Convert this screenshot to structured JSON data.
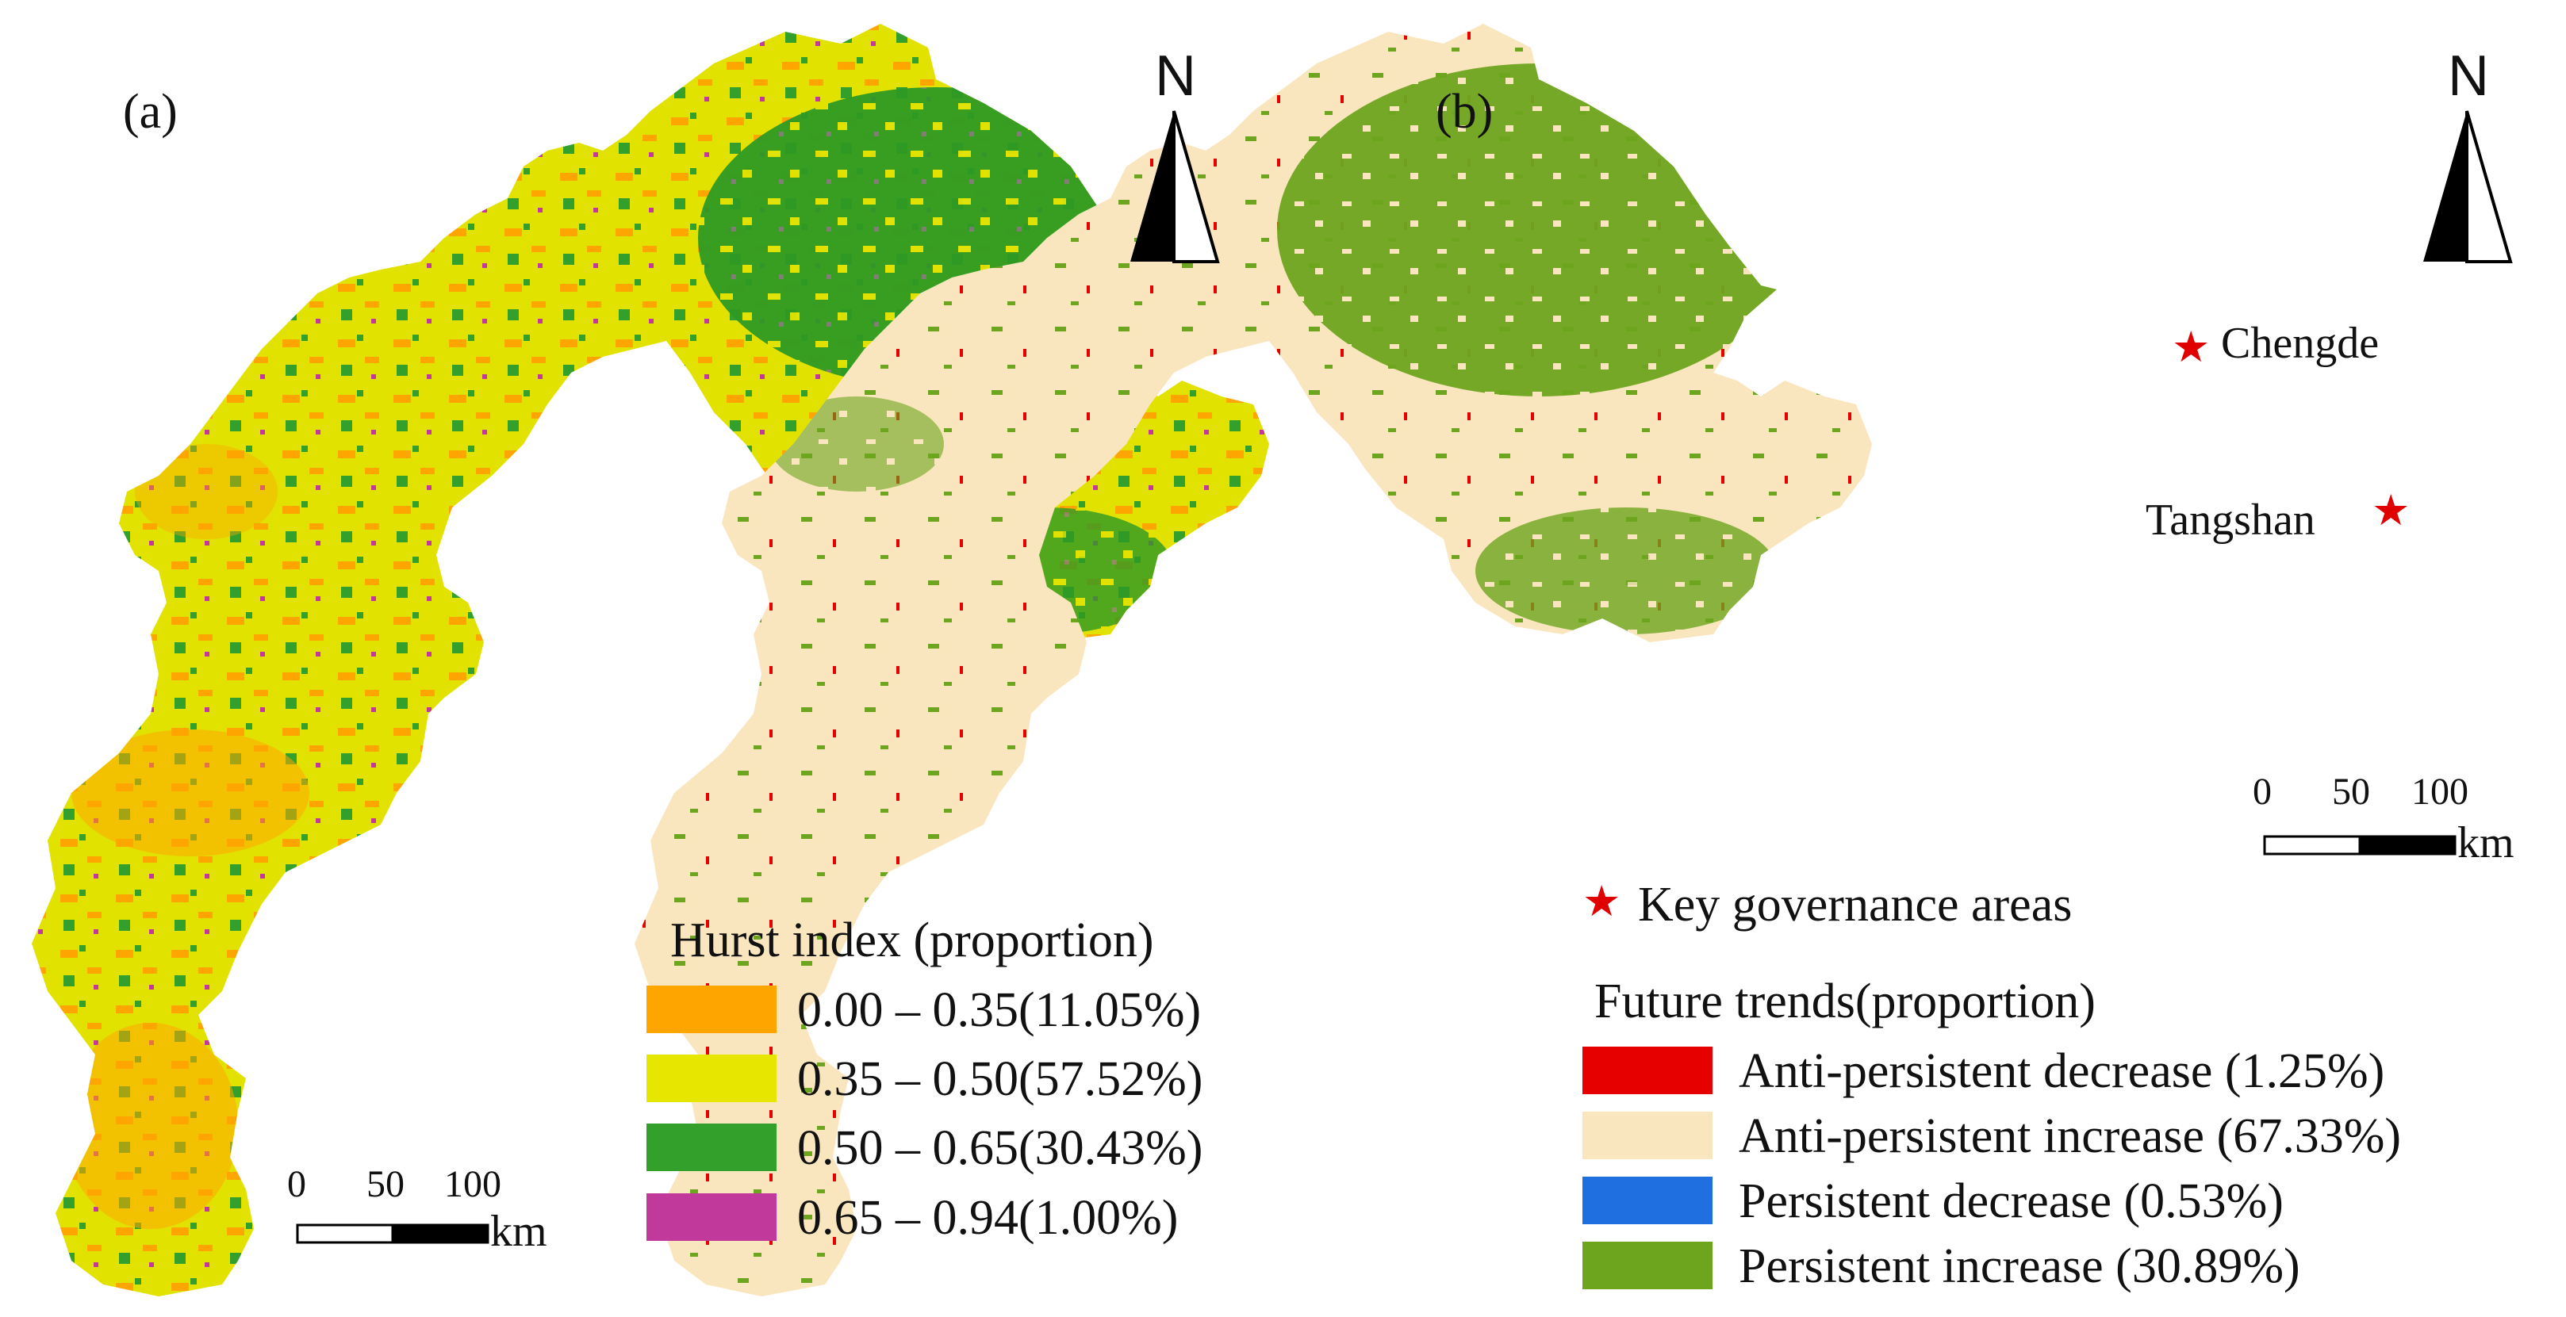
{
  "panel_a": {
    "label": "(a)",
    "legend": {
      "title": "Hurst index (proportion)",
      "items": [
        {
          "label": "0.00 – 0.35(11.05%)",
          "color": "#ffa500",
          "proportion": 11.05
        },
        {
          "label": "0.35 – 0.50(57.52%)",
          "color": "#e6e600",
          "proportion": 57.52
        },
        {
          "label": "0.50 – 0.65(30.43%)",
          "color": "#33a02c",
          "proportion": 30.43
        },
        {
          "label": "0.65 – 0.94(1.00%)",
          "color": "#c0399b",
          "proportion": 1.0
        }
      ]
    },
    "scale_bar": {
      "ticks": [
        "0",
        "50",
        "100"
      ],
      "unit": "km"
    },
    "north_arrow": {
      "letter": "N",
      "icon": "north-arrow-icon"
    }
  },
  "panel_b": {
    "label": "(b)",
    "marker_legend": {
      "symbol": "★",
      "label": "Key governance areas",
      "color": "#e00000"
    },
    "legend": {
      "title": "Future trends(proportion)",
      "items": [
        {
          "label": "Anti-persistent decrease (1.25%)",
          "color": "#e60000",
          "proportion": 1.25
        },
        {
          "label": "Anti-persistent increase (67.33%)",
          "color": "#fae6be",
          "proportion": 67.33
        },
        {
          "label": "Persistent decrease (0.53%)",
          "color": "#1f6fe0",
          "proportion": 0.53
        },
        {
          "label": "Persistent increase (30.89%)",
          "color": "#6ea51e",
          "proportion": 30.89
        }
      ]
    },
    "cities": [
      {
        "name": "Chengde",
        "marker": "★"
      },
      {
        "name": "Tangshan",
        "marker": "★"
      }
    ],
    "scale_bar": {
      "ticks": [
        "0",
        "50",
        "100"
      ],
      "unit": "km"
    },
    "north_arrow": {
      "letter": "N",
      "icon": "north-arrow-icon"
    }
  }
}
